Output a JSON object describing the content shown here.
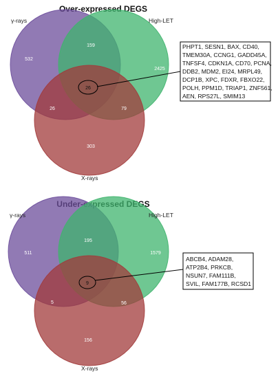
{
  "colors": {
    "gamma": "#6c4d9b",
    "high_let": "#3fb46d",
    "x_rays": "#a23b3b",
    "box_border": "#000000"
  },
  "panels": [
    {
      "title": "Over-expressed DEGS",
      "labels": {
        "gamma": "γ-rays",
        "high_let": "High-LET",
        "x_rays": "X-rays"
      },
      "counts": {
        "gamma_only": "532",
        "high_let_only": "2425",
        "x_only": "303",
        "gamma_high_let": "159",
        "gamma_x": "26",
        "high_let_x": "79",
        "all": "26"
      },
      "genes": [
        "PHPT1, SESN1, BAX, CD40,",
        "TMEM30A, CCNG1, GADD45A,",
        "TNFSF4, CDKN1A, CD70, PCNA,",
        "DDB2, MDM2, EI24, MRPL49,",
        "DCP1B, XPC, FDXR, FBXO22,",
        "POLH, PPM1D, TRIAP1, ZNF561,",
        "AEN, RPS27L, SMIM13"
      ]
    },
    {
      "title": "Under-expressed DEGS",
      "labels": {
        "gamma": "γ-rays",
        "high_let": "High-LET",
        "x_rays": "X-rays"
      },
      "counts": {
        "gamma_only": "511",
        "high_let_only": "1579",
        "x_only": "156",
        "gamma_high_let": "195",
        "gamma_x": "5",
        "high_let_x": "56",
        "all": "9"
      },
      "genes": [
        "ABCB4, ADAM28,",
        "ATP2B4, PRKCB,",
        "NSUN7, FAM111B,",
        "SVIL, FAM177B, RCSD1"
      ]
    }
  ]
}
